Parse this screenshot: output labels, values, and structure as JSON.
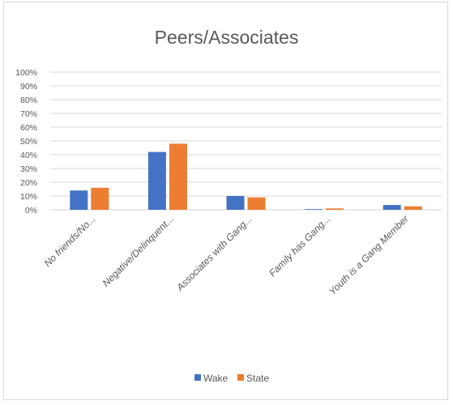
{
  "chart_data": {
    "type": "bar",
    "title": "Peers/Associates",
    "categories": [
      "No friends/No...",
      "Negative/Delinquent...",
      "Associates with Gang...",
      "Family has Gang...",
      "Youth is a Gang Member"
    ],
    "series": [
      {
        "name": "Wake",
        "color": "#4472c4",
        "values": [
          14,
          42,
          10,
          0.5,
          3.5
        ]
      },
      {
        "name": "State",
        "color": "#ed7d31",
        "values": [
          16,
          48,
          9,
          1,
          2.5
        ]
      }
    ],
    "y_ticks": [
      "0%",
      "10%",
      "20%",
      "30%",
      "40%",
      "50%",
      "60%",
      "70%",
      "80%",
      "90%",
      "100%"
    ],
    "ylim": [
      0,
      100
    ],
    "y_unit": "%",
    "grid": true,
    "legend_position": "bottom"
  }
}
